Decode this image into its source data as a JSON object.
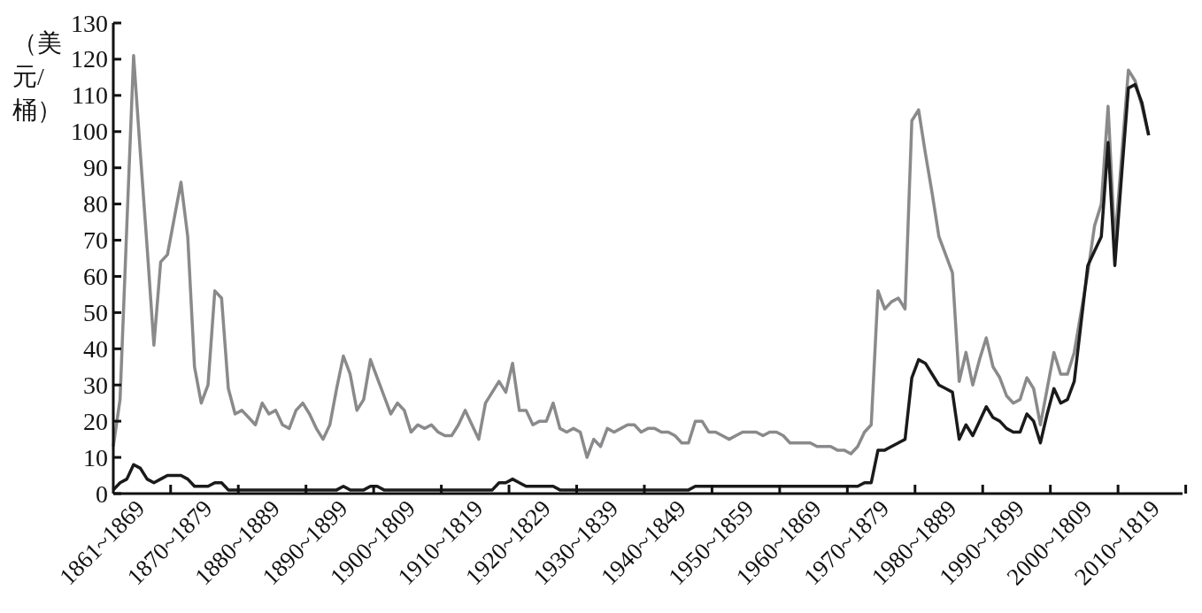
{
  "chart_data": {
    "type": "line",
    "ylabel": "（美元/桶）",
    "ylim": [
      0,
      130
    ],
    "yticks": [
      0,
      10,
      20,
      30,
      40,
      50,
      60,
      70,
      80,
      90,
      100,
      110,
      120,
      130
    ],
    "categories": [
      null,
      null,
      null,
      null,
      "1861~1869",
      null,
      null,
      null,
      null,
      null,
      null,
      null,
      null,
      null,
      "1870~1879",
      null,
      null,
      null,
      null,
      null,
      null,
      null,
      null,
      null,
      "1880~1889",
      null,
      null,
      null,
      null,
      null,
      null,
      null,
      null,
      null,
      "1890~1899",
      null,
      null,
      null,
      null,
      null,
      null,
      null,
      null,
      null,
      "1900~1809",
      null,
      null,
      null,
      null,
      null,
      null,
      null,
      null,
      null,
      "1910~1819",
      null,
      null,
      null,
      null,
      null,
      null,
      null,
      null,
      null,
      "1920~1829",
      null,
      null,
      null,
      null,
      null,
      null,
      null,
      null,
      null,
      "1930~1839",
      null,
      null,
      null,
      null,
      null,
      null,
      null,
      null,
      null,
      "1940~1849",
      null,
      null,
      null,
      null,
      null,
      null,
      null,
      null,
      null,
      "1950~1859",
      null,
      null,
      null,
      null,
      null,
      null,
      null,
      null,
      null,
      "1960~1869",
      null,
      null,
      null,
      null,
      null,
      null,
      null,
      null,
      null,
      "1970~1879",
      null,
      null,
      null,
      null,
      null,
      null,
      null,
      null,
      null,
      "1980~1889",
      null,
      null,
      null,
      null,
      null,
      null,
      null,
      null,
      null,
      "1990~1899",
      null,
      null,
      null,
      null,
      null,
      null,
      null,
      null,
      null,
      "2000~1809",
      null,
      null,
      null,
      null,
      null,
      null,
      null,
      null,
      null,
      "2010~1819",
      null,
      null,
      null,
      null
    ],
    "marker": "none",
    "series": [
      {
        "color": "#8a8a8c",
        "values": [
          13,
          26,
          74,
          121,
          94,
          68,
          41,
          64,
          66,
          76,
          86,
          71,
          35,
          25,
          30,
          56,
          54,
          29,
          22,
          23,
          21,
          19,
          25,
          22,
          23,
          19,
          18,
          23,
          25,
          22,
          18,
          15,
          19,
          29,
          38,
          33,
          23,
          26,
          37,
          32,
          27,
          22,
          25,
          23,
          17,
          19,
          18,
          19,
          17,
          16,
          16,
          19,
          23,
          19,
          15,
          25,
          28,
          31,
          28,
          36,
          23,
          23,
          19,
          20,
          20,
          25,
          18,
          17,
          18,
          17,
          10,
          15,
          13,
          18,
          17,
          18,
          19,
          19,
          17,
          18,
          18,
          17,
          17,
          16,
          14,
          14,
          20,
          20,
          17,
          17,
          16,
          15,
          16,
          17,
          17,
          17,
          16,
          17,
          17,
          16,
          14,
          14,
          14,
          14,
          13,
          13,
          13,
          12,
          12,
          11,
          13,
          17,
          19,
          56,
          51,
          53,
          54,
          51,
          103,
          106,
          94,
          83,
          71,
          66,
          61,
          31,
          39,
          30,
          37,
          43,
          35,
          32,
          27,
          25,
          26,
          32,
          29,
          19,
          29,
          39,
          33,
          33,
          39,
          50,
          61,
          74,
          80,
          107,
          69,
          93,
          117,
          114,
          107,
          99,
          null,
          null,
          null,
          null,
          null
        ]
      },
      {
        "color": "#1a1a1a",
        "values": [
          1,
          3,
          4,
          8,
          7,
          4,
          3,
          4,
          5,
          5,
          5,
          4,
          2,
          2,
          2,
          3,
          3,
          1,
          1,
          1,
          1,
          1,
          1,
          1,
          1,
          1,
          1,
          1,
          1,
          1,
          1,
          1,
          1,
          1,
          2,
          1,
          1,
          1,
          2,
          2,
          1,
          1,
          1,
          1,
          1,
          1,
          1,
          1,
          1,
          1,
          1,
          1,
          1,
          1,
          1,
          1,
          1,
          3,
          3,
          4,
          3,
          2,
          2,
          2,
          2,
          2,
          1,
          1,
          1,
          1,
          1,
          1,
          1,
          1,
          1,
          1,
          1,
          1,
          1,
          1,
          1,
          1,
          1,
          1,
          1,
          1,
          2,
          2,
          2,
          2,
          2,
          2,
          2,
          2,
          2,
          2,
          2,
          2,
          2,
          2,
          2,
          2,
          2,
          2,
          2,
          2,
          2,
          2,
          2,
          2,
          2,
          3,
          3,
          12,
          12,
          13,
          14,
          15,
          32,
          37,
          36,
          33,
          30,
          29,
          28,
          15,
          19,
          16,
          20,
          24,
          21,
          20,
          18,
          17,
          17,
          22,
          20,
          14,
          22,
          29,
          25,
          26,
          31,
          47,
          63,
          67,
          71,
          97,
          63,
          88,
          112,
          113,
          108,
          99,
          null,
          null,
          null,
          null,
          null
        ]
      }
    ]
  }
}
